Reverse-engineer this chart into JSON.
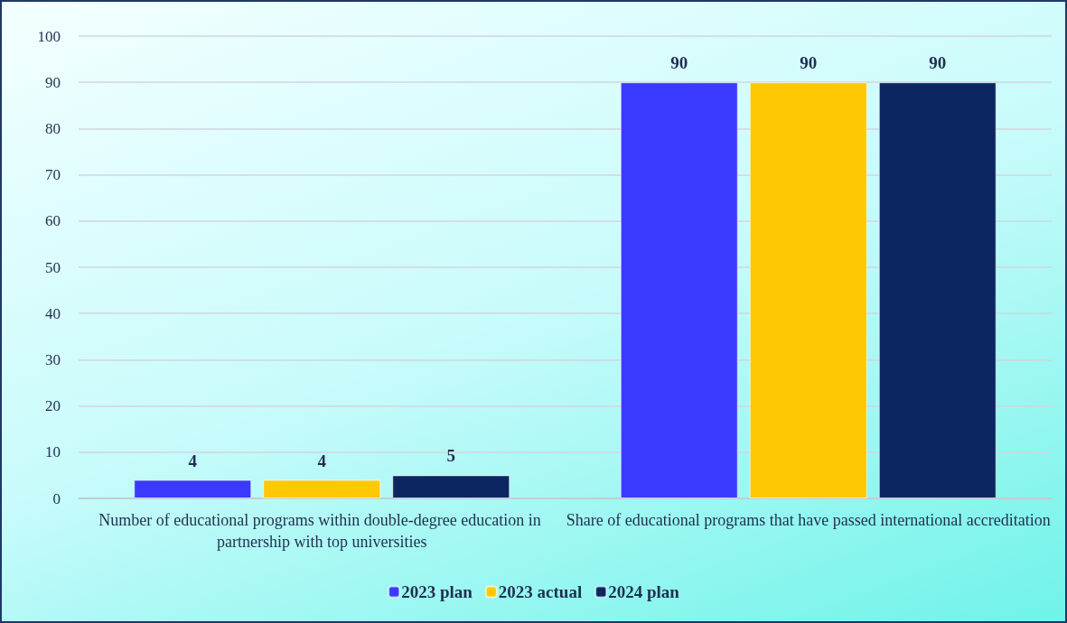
{
  "chart_data": {
    "type": "bar",
    "categories": [
      "Number of educational programs within double-degree education in partnership with top universities",
      "Share of educational programs that have passed international accreditation"
    ],
    "series": [
      {
        "name": "2023 plan",
        "color": "#3a3aff",
        "values": [
          4,
          90
        ]
      },
      {
        "name": "2023 actual",
        "color": "#ffc805",
        "values": [
          4,
          90
        ]
      },
      {
        "name": "2024 plan",
        "color": "#0b2660",
        "values": [
          5,
          90
        ]
      }
    ],
    "ylim": [
      0,
      100
    ],
    "yticks": [
      0,
      10,
      20,
      30,
      40,
      50,
      60,
      70,
      80,
      90,
      100
    ],
    "grid": "y",
    "legend": "bottom",
    "data_labels": true
  }
}
